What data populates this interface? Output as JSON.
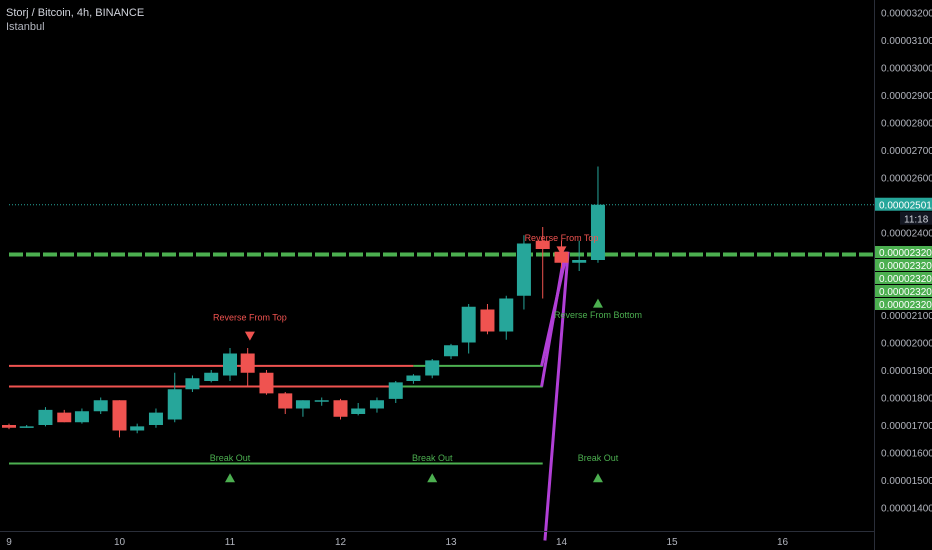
{
  "header": {
    "symbol": "Storj / Bitcoin, 4h, BINANCE",
    "timezone": "Istanbul"
  },
  "colors": {
    "background": "#000000",
    "bull": "#26a69a",
    "bear": "#ef5350",
    "support_line": "#4caf50",
    "resistance_line": "#ef5350",
    "purple": "#b13fd6",
    "current_price": "#26a69a",
    "axis_text": "#b2b5be"
  },
  "chart_data": {
    "type": "candlestick",
    "ylim": [
      1.3e-06,
      3.2e-06
    ],
    "y_ticks": [
      "0.00001400",
      "0.00001500",
      "0.00001600",
      "0.00001700",
      "0.00001800",
      "0.00001900",
      "0.00002000",
      "0.00002100",
      "0.00002400",
      "0.00002500",
      "0.00002600",
      "0.00002700",
      "0.00002800",
      "0.00002900",
      "0.00003000",
      "0.00003100",
      "0.00003200"
    ],
    "x_ticks": [
      "9",
      "10",
      "11",
      "12",
      "13",
      "14",
      "15",
      "16"
    ],
    "current_price_label": "0.00002501",
    "countdown_label": "11:18",
    "level_labels": [
      "0.00002320",
      "0.00002320",
      "0.00002320",
      "0.00002320",
      "0.00002320"
    ],
    "candles": [
      {
        "day": 9.0,
        "o": 1.7,
        "h": 1.705,
        "l": 1.685,
        "c": 1.69
      },
      {
        "day": 9.16,
        "o": 1.695,
        "h": 1.7,
        "l": 1.69,
        "c": 1.695
      },
      {
        "day": 9.33,
        "o": 1.7,
        "h": 1.765,
        "l": 1.695,
        "c": 1.755
      },
      {
        "day": 9.5,
        "o": 1.745,
        "h": 1.755,
        "l": 1.71,
        "c": 1.71
      },
      {
        "day": 9.66,
        "o": 1.71,
        "h": 1.76,
        "l": 1.705,
        "c": 1.75
      },
      {
        "day": 9.83,
        "o": 1.75,
        "h": 1.8,
        "l": 1.74,
        "c": 1.79
      },
      {
        "day": 10.0,
        "o": 1.79,
        "h": 1.79,
        "l": 1.655,
        "c": 1.68
      },
      {
        "day": 10.16,
        "o": 1.68,
        "h": 1.705,
        "l": 1.67,
        "c": 1.695
      },
      {
        "day": 10.33,
        "o": 1.7,
        "h": 1.76,
        "l": 1.69,
        "c": 1.745
      },
      {
        "day": 10.5,
        "o": 1.72,
        "h": 1.89,
        "l": 1.71,
        "c": 1.83
      },
      {
        "day": 10.66,
        "o": 1.83,
        "h": 1.88,
        "l": 1.82,
        "c": 1.87
      },
      {
        "day": 10.83,
        "o": 1.86,
        "h": 1.9,
        "l": 1.855,
        "c": 1.89
      },
      {
        "day": 11.0,
        "o": 1.88,
        "h": 1.98,
        "l": 1.86,
        "c": 1.96
      },
      {
        "day": 11.16,
        "o": 1.96,
        "h": 1.98,
        "l": 1.84,
        "c": 1.89
      },
      {
        "day": 11.33,
        "o": 1.89,
        "h": 1.9,
        "l": 1.81,
        "c": 1.815
      },
      {
        "day": 11.5,
        "o": 1.815,
        "h": 1.82,
        "l": 1.74,
        "c": 1.76
      },
      {
        "day": 11.66,
        "o": 1.76,
        "h": 1.79,
        "l": 1.73,
        "c": 1.79
      },
      {
        "day": 11.83,
        "o": 1.785,
        "h": 1.8,
        "l": 1.77,
        "c": 1.79
      },
      {
        "day": 12.0,
        "o": 1.79,
        "h": 1.795,
        "l": 1.72,
        "c": 1.73
      },
      {
        "day": 12.16,
        "o": 1.74,
        "h": 1.78,
        "l": 1.735,
        "c": 1.76
      },
      {
        "day": 12.33,
        "o": 1.76,
        "h": 1.8,
        "l": 1.745,
        "c": 1.79
      },
      {
        "day": 12.5,
        "o": 1.795,
        "h": 1.86,
        "l": 1.78,
        "c": 1.855
      },
      {
        "day": 12.66,
        "o": 1.86,
        "h": 1.885,
        "l": 1.85,
        "c": 1.88
      },
      {
        "day": 12.83,
        "o": 1.88,
        "h": 1.94,
        "l": 1.87,
        "c": 1.935
      },
      {
        "day": 13.0,
        "o": 1.95,
        "h": 1.995,
        "l": 1.94,
        "c": 1.99
      },
      {
        "day": 13.16,
        "o": 2.0,
        "h": 2.14,
        "l": 1.96,
        "c": 2.13
      },
      {
        "day": 13.33,
        "o": 2.12,
        "h": 2.14,
        "l": 2.03,
        "c": 2.04
      },
      {
        "day": 13.5,
        "o": 2.04,
        "h": 2.17,
        "l": 2.01,
        "c": 2.16
      },
      {
        "day": 13.66,
        "o": 2.17,
        "h": 2.39,
        "l": 2.12,
        "c": 2.36
      },
      {
        "day": 13.83,
        "o": 2.37,
        "h": 2.42,
        "l": 2.16,
        "c": 2.34
      },
      {
        "day": 14.0,
        "o": 2.33,
        "h": 2.37,
        "l": 2.27,
        "c": 2.29
      },
      {
        "day": 14.16,
        "o": 2.29,
        "h": 2.37,
        "l": 2.26,
        "c": 2.3
      },
      {
        "day": 14.33,
        "o": 2.3,
        "h": 2.64,
        "l": 2.29,
        "c": 2.501
      }
    ],
    "horizontal_lines": [
      {
        "name": "resistance-upper",
        "color": "#ef5350",
        "y": 1.915,
        "x_start": 9.0,
        "x_end": 12.66
      },
      {
        "name": "resistance-lower",
        "color": "#ef5350",
        "y": 1.84,
        "x_start": 9.0,
        "x_end": 12.5
      },
      {
        "name": "support-upper",
        "color": "#4caf50",
        "y": 1.915,
        "x_start": 12.66,
        "x_end": 13.83
      },
      {
        "name": "support-lower",
        "color": "#4caf50",
        "y": 1.84,
        "x_start": 12.5,
        "x_end": 13.83
      },
      {
        "name": "breakout-line",
        "color": "#4caf50",
        "y": 1.56,
        "x_start": 9.0,
        "x_end": 13.83
      },
      {
        "name": "level-2320",
        "color": "#4caf50",
        "y": 2.32,
        "x_start": 9.0,
        "x_end": 16.9,
        "dashed": true
      },
      {
        "name": "current-price",
        "color": "#26a69a",
        "y": 2.501,
        "x_start": 9.0,
        "x_end": 16.9,
        "dotted": true
      }
    ],
    "purple_lines": [
      {
        "x1": 13.82,
        "y1": 1.84,
        "x2": 14.03,
        "y2": 2.33
      },
      {
        "x1": 13.82,
        "y1": 1.915,
        "x2": 14.05,
        "y2": 2.33
      },
      {
        "x1": 13.85,
        "y1": 1.28,
        "x2": 14.06,
        "y2": 2.33
      }
    ],
    "annotations": [
      {
        "text": "Reverse From Top",
        "day": 11.18,
        "y": 2.08,
        "color": "#ef5350",
        "marker": "down",
        "marker_y": 2.025
      },
      {
        "text": "Reverse From Top",
        "day": 14.0,
        "y": 2.37,
        "color": "#ef5350",
        "marker": "down",
        "marker_y": 2.335
      },
      {
        "text": "Reverse From Bottom",
        "day": 14.33,
        "y": 2.09,
        "color": "#4caf50",
        "marker": "up",
        "marker_y": 2.145
      },
      {
        "text": "Break Out",
        "day": 11.0,
        "y": 1.57,
        "color": "#4caf50",
        "marker": "up",
        "marker_y": 1.51
      },
      {
        "text": "Break Out",
        "day": 12.83,
        "y": 1.57,
        "color": "#4caf50",
        "marker": "up",
        "marker_y": 1.51
      },
      {
        "text": "Break Out",
        "day": 14.33,
        "y": 1.57,
        "color": "#4caf50",
        "marker": "up",
        "marker_y": 1.51
      }
    ]
  }
}
